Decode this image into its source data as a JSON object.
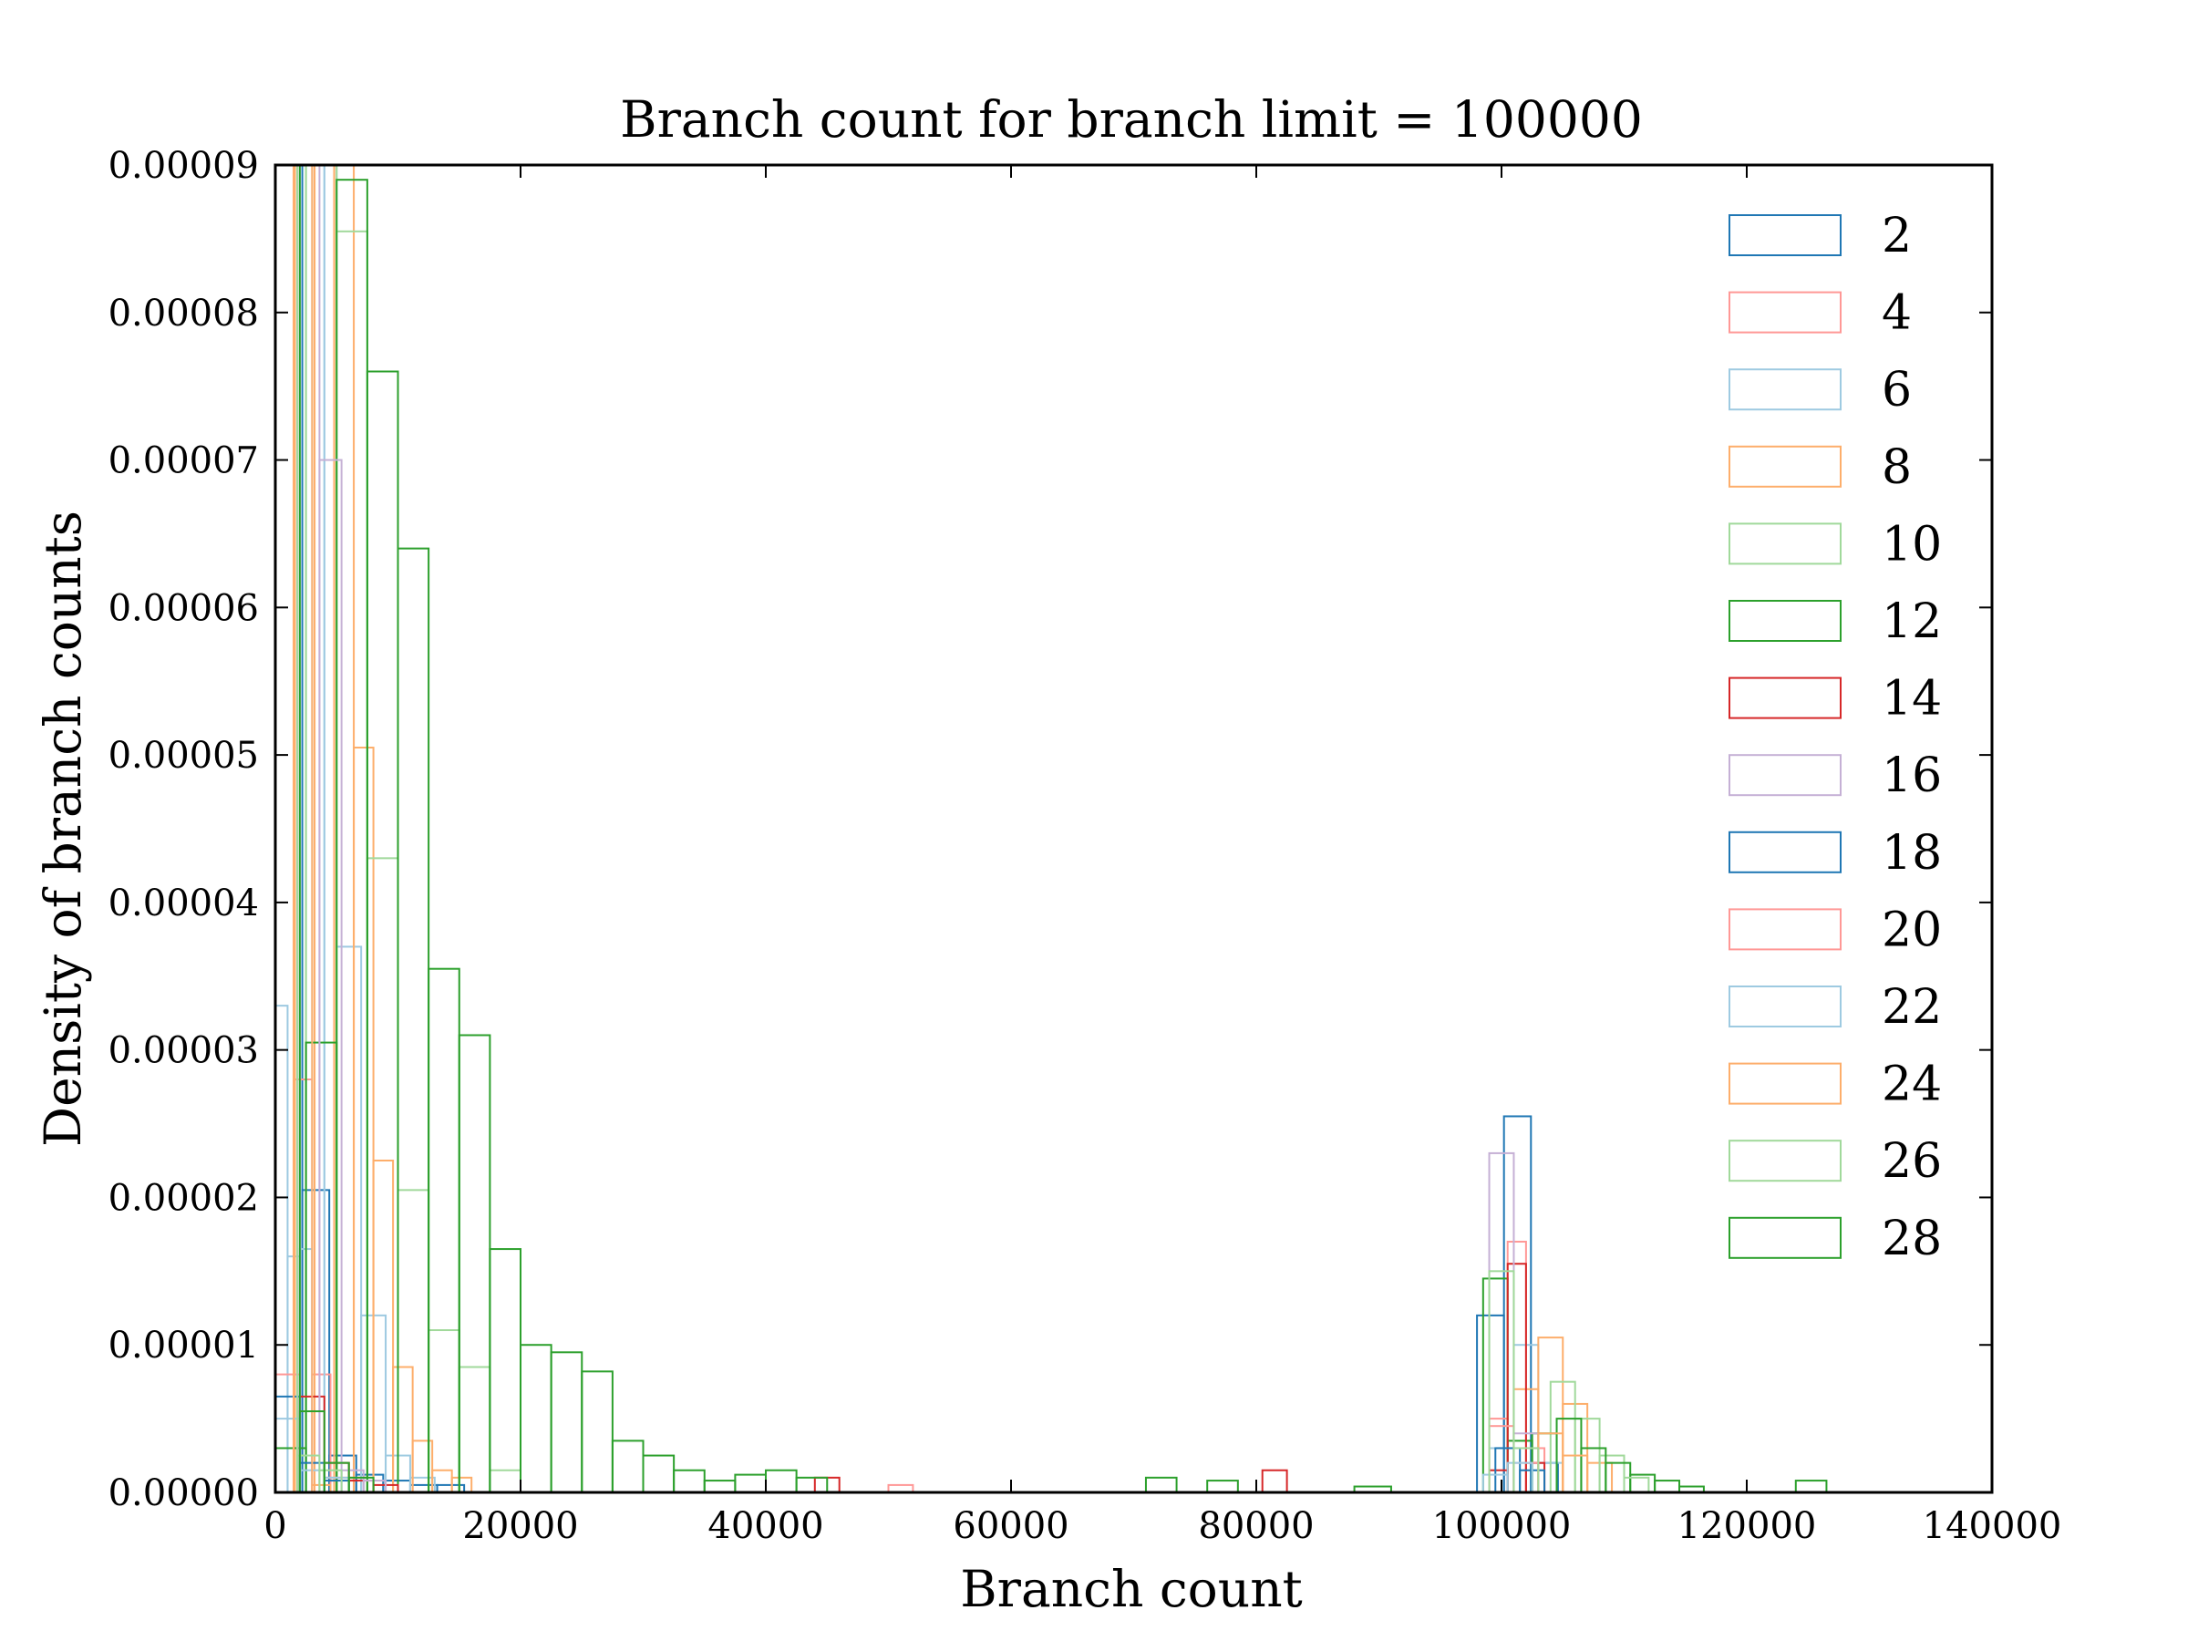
{
  "chart_data": {
    "type": "histogram",
    "title": "Branch count for branch limit = 100000",
    "xlabel": "Branch count",
    "ylabel": "Density of branch counts",
    "xlim": [
      0,
      140000
    ],
    "ylim": [
      0,
      9e-05
    ],
    "x_ticks": [
      0,
      20000,
      40000,
      60000,
      80000,
      100000,
      120000,
      140000
    ],
    "x_tick_labels": [
      "0",
      "20000",
      "40000",
      "60000",
      "80000",
      "100000",
      "120000",
      "140000"
    ],
    "y_ticks": [
      0,
      1e-05,
      2e-05,
      3e-05,
      4e-05,
      5e-05,
      6e-05,
      7e-05,
      8e-05,
      9e-05
    ],
    "y_tick_labels": [
      "0.00000",
      "0.00001",
      "0.00002",
      "0.00003",
      "0.00004",
      "0.00005",
      "0.00006",
      "0.00007",
      "0.00008",
      "0.00009"
    ],
    "grid": false,
    "legend_position": "top-right",
    "series": [
      {
        "name": "2",
        "color": "#1f77b4",
        "bins": [
          [
            0,
            2200,
            9e-05
          ],
          [
            2200,
            4400,
            2.05e-05
          ],
          [
            4400,
            6600,
            2.5e-06
          ],
          [
            6600,
            8800,
            1.2e-06
          ],
          [
            8800,
            11000,
            8e-07
          ],
          [
            11000,
            13200,
            5e-07
          ],
          [
            13200,
            15400,
            5e-07
          ],
          [
            98000,
            100200,
            1.2e-05
          ],
          [
            100200,
            102400,
            2.55e-05
          ],
          [
            102400,
            104600,
            2e-06
          ]
        ]
      },
      {
        "name": "4",
        "color": "#ff9896",
        "bins": [
          [
            0,
            1500,
            9e-05
          ],
          [
            1500,
            3000,
            2.8e-05
          ],
          [
            3000,
            4500,
            8e-06
          ],
          [
            4500,
            6000,
            2e-06
          ],
          [
            6000,
            7500,
            1e-06
          ],
          [
            99000,
            100500,
            5e-06
          ],
          [
            100500,
            102000,
            1.7e-05
          ],
          [
            102000,
            103500,
            3e-06
          ]
        ]
      },
      {
        "name": "6",
        "color": "#9ecae1",
        "bins": [
          [
            0,
            1000,
            3.3e-05
          ],
          [
            1000,
            2000,
            1.6e-05
          ],
          [
            2000,
            3000,
            1.65e-05
          ],
          [
            3000,
            4000,
            9e-05
          ],
          [
            4000,
            5000,
            9e-05
          ],
          [
            5000,
            7000,
            3.7e-05
          ],
          [
            7000,
            9000,
            1.2e-05
          ],
          [
            9000,
            11000,
            2.5e-06
          ],
          [
            11000,
            13000,
            1e-06
          ],
          [
            99000,
            101000,
            3e-06
          ],
          [
            101000,
            103000,
            1e-05
          ],
          [
            103000,
            105000,
            2e-06
          ]
        ]
      },
      {
        "name": "8",
        "color": "#fdae6b",
        "bins": [
          [
            0,
            1600,
            9e-05
          ],
          [
            1600,
            3200,
            9e-05
          ],
          [
            3200,
            4800,
            9e-05
          ],
          [
            4800,
            6400,
            9e-05
          ],
          [
            6400,
            8000,
            5.05e-05
          ],
          [
            8000,
            9600,
            2.25e-05
          ],
          [
            9600,
            11200,
            8.5e-06
          ],
          [
            11200,
            12800,
            3.5e-06
          ],
          [
            12800,
            14400,
            1.5e-06
          ],
          [
            14400,
            16000,
            1e-06
          ],
          [
            101000,
            103000,
            7e-06
          ],
          [
            103000,
            105000,
            1.05e-05
          ],
          [
            105000,
            107000,
            6e-06
          ],
          [
            107000,
            109000,
            2e-06
          ]
        ]
      },
      {
        "name": "10",
        "color": "#a1d99b",
        "bins": [
          [
            0,
            2500,
            9e-05
          ],
          [
            2500,
            5000,
            9e-05
          ],
          [
            5000,
            7500,
            8.55e-05
          ],
          [
            7500,
            10000,
            4.3e-05
          ],
          [
            10000,
            12500,
            2.05e-05
          ],
          [
            12500,
            15000,
            1.1e-05
          ],
          [
            15000,
            17500,
            8.5e-06
          ],
          [
            17500,
            20000,
            1.5e-06
          ],
          [
            104000,
            106000,
            7.5e-06
          ],
          [
            106000,
            108000,
            5e-06
          ],
          [
            108000,
            110000,
            2.5e-06
          ]
        ]
      },
      {
        "name": "12",
        "color": "#2ca02c",
        "bins": [
          [
            0,
            2500,
            3e-06
          ],
          [
            2500,
            5000,
            3.05e-05
          ],
          [
            5000,
            7500,
            8.9e-05
          ],
          [
            7500,
            10000,
            7.6e-05
          ],
          [
            10000,
            12500,
            6.4e-05
          ],
          [
            12500,
            15000,
            3.55e-05
          ],
          [
            15000,
            17500,
            3.1e-05
          ],
          [
            17500,
            20000,
            1.65e-05
          ],
          [
            20000,
            22500,
            1e-05
          ],
          [
            22500,
            25000,
            9.5e-06
          ],
          [
            25000,
            27500,
            8.2e-06
          ],
          [
            27500,
            30000,
            3.5e-06
          ],
          [
            30000,
            32500,
            2.5e-06
          ],
          [
            32500,
            35000,
            1.5e-06
          ],
          [
            35000,
            37500,
            8e-07
          ],
          [
            37500,
            40000,
            1.2e-06
          ],
          [
            98500,
            100500,
            1.45e-05
          ],
          [
            100500,
            102500,
            3.5e-06
          ],
          [
            102500,
            104500,
            4e-06
          ],
          [
            104500,
            106500,
            5e-06
          ],
          [
            106500,
            108500,
            3e-06
          ],
          [
            108500,
            110500,
            2e-06
          ],
          [
            110500,
            112500,
            1.2e-06
          ],
          [
            112500,
            114500,
            8e-07
          ],
          [
            114500,
            116500,
            4e-07
          ],
          [
            124000,
            126500,
            8e-07
          ]
        ]
      },
      {
        "name": "14",
        "color": "#d62728",
        "bins": [
          [
            2000,
            4000,
            6.5e-06
          ],
          [
            4000,
            6000,
            2e-06
          ],
          [
            6000,
            8000,
            8e-07
          ],
          [
            8000,
            10000,
            5e-07
          ],
          [
            44000,
            46000,
            1e-06
          ],
          [
            80500,
            82500,
            1.5e-06
          ],
          [
            99000,
            100500,
            1.5e-06
          ],
          [
            100500,
            102000,
            1.55e-05
          ],
          [
            102000,
            103500,
            2e-06
          ]
        ]
      },
      {
        "name": "16",
        "color": "#c5b0d5",
        "bins": [
          [
            0,
            1800,
            9e-05
          ],
          [
            1800,
            3600,
            9e-05
          ],
          [
            3600,
            5400,
            7e-05
          ],
          [
            5400,
            7200,
            1.5e-06
          ],
          [
            7200,
            9000,
            8e-07
          ],
          [
            99000,
            101000,
            2.3e-05
          ],
          [
            101000,
            103000,
            4e-06
          ]
        ]
      },
      {
        "name": "18",
        "color": "#1f77b4",
        "bins": [
          [
            0,
            2000,
            6.5e-06
          ],
          [
            2000,
            4000,
            2e-06
          ],
          [
            4000,
            6000,
            8e-07
          ],
          [
            99500,
            101500,
            3e-06
          ],
          [
            101500,
            103500,
            1.5e-06
          ]
        ]
      },
      {
        "name": "20",
        "color": "#ff9896",
        "bins": [
          [
            0,
            2000,
            8e-06
          ],
          [
            2000,
            4000,
            5.5e-06
          ],
          [
            4000,
            6000,
            1e-06
          ],
          [
            50000,
            52000,
            5e-07
          ],
          [
            99000,
            101000,
            4.5e-06
          ],
          [
            101000,
            103000,
            2e-06
          ]
        ]
      },
      {
        "name": "22",
        "color": "#9ecae1",
        "bins": [
          [
            0,
            2000,
            5e-06
          ],
          [
            2000,
            4000,
            1.5e-06
          ],
          [
            4000,
            6000,
            1e-06
          ],
          [
            98500,
            100500,
            1.2e-06
          ],
          [
            100500,
            102500,
            2e-06
          ]
        ]
      },
      {
        "name": "24",
        "color": "#fdae6b",
        "bins": [
          [
            0,
            1500,
            9e-05
          ],
          [
            1500,
            3000,
            9e-05
          ],
          [
            3000,
            4500,
            5e-07
          ],
          [
            103000,
            105000,
            4e-06
          ],
          [
            105000,
            107000,
            2.5e-06
          ]
        ]
      },
      {
        "name": "26",
        "color": "#a1d99b",
        "bins": [
          [
            0,
            1800,
            9e-05
          ],
          [
            1800,
            3600,
            2.5e-06
          ],
          [
            3600,
            5400,
            1.5e-06
          ],
          [
            99000,
            101000,
            1.5e-05
          ],
          [
            101000,
            103000,
            3e-06
          ],
          [
            110000,
            112000,
            1e-06
          ]
        ]
      },
      {
        "name": "28",
        "color": "#2ca02c",
        "bins": [
          [
            0,
            2000,
            9e-05
          ],
          [
            2000,
            4000,
            5.5e-06
          ],
          [
            4000,
            6000,
            2e-06
          ],
          [
            6000,
            8000,
            1e-06
          ],
          [
            40000,
            42500,
            1.5e-06
          ],
          [
            42500,
            45000,
            1e-06
          ],
          [
            71000,
            73500,
            1e-06
          ],
          [
            76000,
            78500,
            8e-07
          ],
          [
            88000,
            91000,
            4e-07
          ]
        ]
      }
    ]
  }
}
